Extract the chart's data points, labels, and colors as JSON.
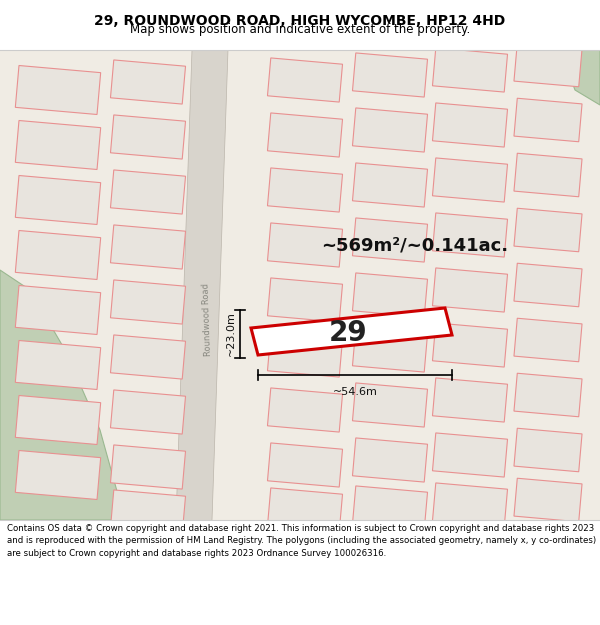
{
  "title": "29, ROUNDWOOD ROAD, HIGH WYCOMBE, HP12 4HD",
  "subtitle": "Map shows position and indicative extent of the property.",
  "footer": "Contains OS data © Crown copyright and database right 2021. This information is subject to Crown copyright and database rights 2023 and is reproduced with the permission of HM Land Registry. The polygons (including the associated geometry, namely x, y co-ordinates) are subject to Crown copyright and database rights 2023 Ordnance Survey 100026316.",
  "area_text": "~569m²/~0.141ac.",
  "property_number": "29",
  "width_text": "~54.6m",
  "height_text": "~23.0m",
  "road_label": "Roundwood Road",
  "map_bg": "#f0ece4",
  "plot_fc": "#e8e4de",
  "plot_ec": "#e89090",
  "road_fc": "#d8d4cc",
  "green_fc": "#c0cfb4",
  "highlight_ec": "#cc0000",
  "highlight_fc": "#ffffff",
  "title_fs": 10,
  "subtitle_fs": 8.5,
  "area_fs": 13,
  "num_fs": 20,
  "dim_fs": 8,
  "road_fs": 6,
  "footer_fs": 6.2
}
